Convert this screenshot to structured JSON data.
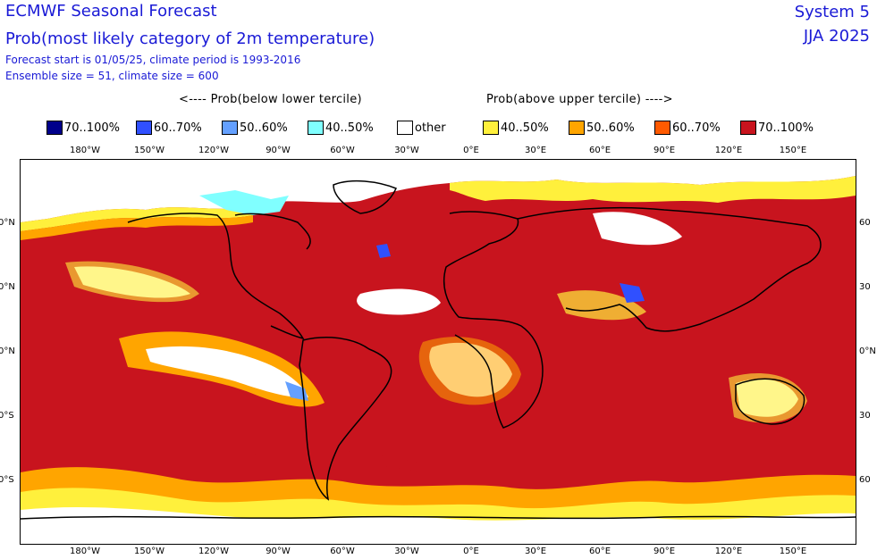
{
  "header": {
    "title_line1": "ECMWF Seasonal Forecast",
    "title_line2": "Prob(most likely category of 2m temperature)",
    "info_line1": "Forecast start is 01/05/25, climate period is 1993-2016",
    "info_line2": "Ensemble size = 51, climate size = 600",
    "system": "System 5",
    "season": "JJA 2025"
  },
  "legend": {
    "below_caption": "<---- Prob(below lower tercile)",
    "above_caption": "Prob(above upper tercile) ---->",
    "items": [
      {
        "label": "70..100%",
        "color": "#00008b"
      },
      {
        "label": "60..70%",
        "color": "#3050ff"
      },
      {
        "label": "50..60%",
        "color": "#64a0ff"
      },
      {
        "label": "40..50%",
        "color": "#80ffff"
      },
      {
        "label": "other",
        "color": "#ffffff"
      },
      {
        "label": "40..50%",
        "color": "#fff03c"
      },
      {
        "label": "50..60%",
        "color": "#ffa500"
      },
      {
        "label": "60..70%",
        "color": "#ff5a00"
      },
      {
        "label": "70..100%",
        "color": "#c8141e"
      }
    ]
  },
  "axes": {
    "lon_labels": [
      "180°W",
      "150°W",
      "120°W",
      "90°W",
      "60°W",
      "30°W",
      "0°E",
      "30°E",
      "60°E",
      "90°E",
      "120°E",
      "150°E"
    ],
    "lat_labels_left": [
      "0°N",
      "0°N",
      "0°N",
      "0°S",
      "0°S"
    ],
    "lat_labels_right": [
      "60",
      "30",
      "0°N",
      "30",
      "60"
    ]
  },
  "map": {
    "colors": {
      "ocean_warm": "#c8141e",
      "band_60_70": "#ff5a00",
      "band_50_60": "#ffa500",
      "band_40_50": "#fff03c",
      "other": "#ffffff",
      "cold_40_50": "#80ffff",
      "cold_50_60": "#64a0ff",
      "cold_60_70": "#3050ff",
      "coast": "#000000"
    }
  }
}
